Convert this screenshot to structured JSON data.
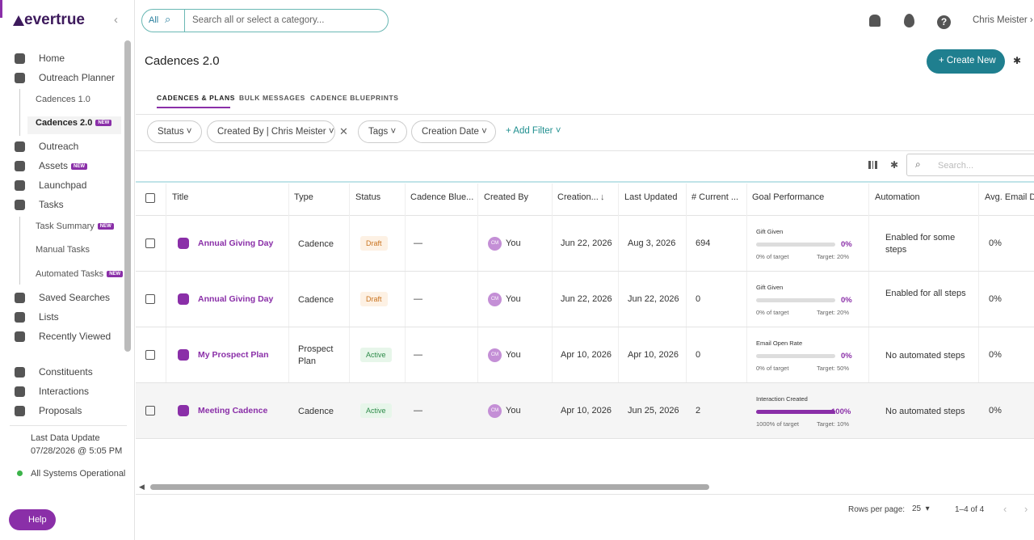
{
  "sidebar": {
    "logo": "evertrue",
    "nav": [
      {
        "label": "Home"
      },
      {
        "label": "Outreach Planner"
      },
      {
        "label": "Cadences 1.0"
      },
      {
        "label": "Cadences 2.0",
        "badge": "NEW"
      },
      {
        "label": "Outreach"
      },
      {
        "label": "Assets",
        "badge": "NEW"
      },
      {
        "label": "Launchpad"
      },
      {
        "label": "Tasks"
      },
      {
        "label": "Task Summary",
        "badge": "NEW"
      },
      {
        "label": "Manual Tasks"
      },
      {
        "label": "Automated Tasks",
        "badge": "NEW"
      },
      {
        "label": "Saved Searches"
      },
      {
        "label": "Lists"
      },
      {
        "label": "Recently Viewed"
      },
      {
        "label": "Constituents"
      },
      {
        "label": "Interactions"
      },
      {
        "label": "Proposals"
      }
    ],
    "last_update_label": "Last Data Update",
    "last_update": "07/28/2026 @ 5:05 PM",
    "status": "All Systems Operational",
    "help": "Help"
  },
  "topbar": {
    "scope": "All",
    "search_placeholder": "Search all or select a category...",
    "user": "Chris Meister"
  },
  "header": {
    "title": "Cadences 2.0",
    "create": "Create New"
  },
  "tabs": [
    "CADENCES & PLANS",
    "BULK MESSAGES",
    "CADENCE BLUEPRINTS"
  ],
  "filters": [
    "Status",
    "Created By | Chris Meister",
    "Tags",
    "Creation Date"
  ],
  "add_filter": "+ Add Filter",
  "table_search": "Search...",
  "table": {
    "columns": [
      "Title",
      "Type",
      "Status",
      "Cadence Blue...",
      "Created By",
      "Creation...",
      "Last Updated",
      "# Current ...",
      "Goal Performance",
      "Automation",
      "Avg. Email Do"
    ],
    "rows": [
      {
        "title": "Annual Giving Day",
        "type": "Cadence",
        "status": "Draft",
        "blueprint": "—",
        "avatar": "CM",
        "created_by": "You",
        "created": "Jun 22, 2026",
        "updated": "Aug 3, 2026",
        "current": "694",
        "goal": {
          "name": "Gift Given",
          "percent": "0%",
          "of_target": "0% of target",
          "target": "Target: 20%"
        },
        "automation": "Enabled for some steps",
        "avg": "0%"
      },
      {
        "title": "Annual Giving Day",
        "type": "Cadence",
        "status": "Draft",
        "blueprint": "—",
        "avatar": "CM",
        "created_by": "You",
        "created": "Jun 22, 2026",
        "updated": "Jun 22, 2026",
        "current": "0",
        "goal": {
          "name": "Gift Given",
          "percent": "0%",
          "of_target": "0% of target",
          "target": "Target: 20%"
        },
        "automation": "Enabled for all steps",
        "avg": "0%"
      },
      {
        "title": "My Prospect Plan",
        "type": "Prospect Plan",
        "status": "Active",
        "blueprint": "—",
        "avatar": "CM",
        "created_by": "You",
        "created": "Apr 10, 2026",
        "updated": "Apr 10, 2026",
        "current": "0",
        "goal": {
          "name": "Email Open Rate",
          "percent": "0%",
          "of_target": "0% of target",
          "target": "Target: 50%"
        },
        "automation": "No automated steps",
        "avg": "0%"
      },
      {
        "title": "Meeting Cadence",
        "type": "Cadence",
        "status": "Active",
        "blueprint": "—",
        "avatar": "CM",
        "created_by": "You",
        "created": "Apr 10, 2026",
        "updated": "Jun 25, 2026",
        "current": "2",
        "goal": {
          "name": "Interaction Created",
          "percent": "100%",
          "of_target": "1000% of target",
          "target": "Target: 10%"
        },
        "automation": "No automated steps",
        "avg": "0%"
      }
    ]
  },
  "pagination": {
    "rows_label": "Rows per page:",
    "rows": "25",
    "range": "1–4 of 4"
  }
}
